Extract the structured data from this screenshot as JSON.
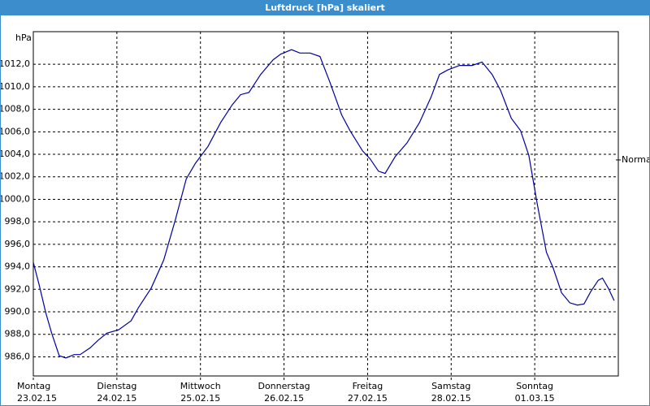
{
  "window": {
    "title": "Luftdruck [hPa] skaliert"
  },
  "chart_data": {
    "type": "line",
    "y_label": "hPa",
    "x": [
      0,
      0.07,
      0.15,
      0.22,
      0.31,
      0.39,
      0.49,
      0.56,
      0.68,
      0.78,
      0.88,
      1.02,
      1.17,
      1.26,
      1.41,
      1.56,
      1.7,
      1.83,
      1.94,
      2.09,
      2.24,
      2.38,
      2.48,
      2.58,
      2.72,
      2.87,
      2.96,
      3.09,
      3.19,
      3.31,
      3.43,
      3.55,
      3.69,
      3.79,
      3.94,
      4.03,
      4.13,
      4.21,
      4.33,
      4.47,
      4.62,
      4.76,
      4.86,
      4.96,
      5.1,
      5.25,
      5.37,
      5.49,
      5.59,
      5.72,
      5.83,
      5.93,
      6.03,
      6.14,
      6.22,
      6.32,
      6.42,
      6.51,
      6.59,
      6.67,
      6.76,
      6.81,
      6.88,
      6.95
    ],
    "series": [
      {
        "color": "#0000a0",
        "values": [
          994.4,
          992.4,
          989.9,
          988.1,
          986.1,
          985.9,
          986.2,
          986.2,
          986.8,
          987.5,
          988.1,
          988.4,
          989.2,
          990.4,
          992.1,
          994.6,
          998.2,
          1001.8,
          1003.2,
          1004.7,
          1006.8,
          1008.4,
          1009.3,
          1009.5,
          1011.1,
          1012.4,
          1012.9,
          1013.3,
          1013.0,
          1013.0,
          1012.7,
          1010.4,
          1007.5,
          1006.1,
          1004.3,
          1003.6,
          1002.5,
          1002.3,
          1003.8,
          1005.0,
          1006.8,
          1009.1,
          1011.1,
          1011.5,
          1011.9,
          1011.9,
          1012.2,
          1011.1,
          1009.7,
          1007.2,
          1006.1,
          1003.9,
          999.6,
          995.3,
          993.9,
          991.7,
          990.8,
          990.6,
          990.7,
          991.8,
          992.8,
          993.0,
          992.1,
          991.0
        ]
      }
    ],
    "xlim": [
      0,
      7
    ],
    "xticks": [
      {
        "value": 0,
        "label": "Montag",
        "date": "23.02.15"
      },
      {
        "value": 1,
        "label": "Dienstag",
        "date": "24.02.15"
      },
      {
        "value": 2,
        "label": "Mittwoch",
        "date": "25.02.15"
      },
      {
        "value": 3,
        "label": "Donnerstag",
        "date": "26.02.15"
      },
      {
        "value": 4,
        "label": "Freitag",
        "date": "27.02.15"
      },
      {
        "value": 5,
        "label": "Samstag",
        "date": "28.02.15"
      },
      {
        "value": 6,
        "label": "Sonntag",
        "date": "01.03.15"
      }
    ],
    "ylim": [
      984.3,
      1014.9
    ],
    "yticks": [
      {
        "value": 986,
        "label": "986,0"
      },
      {
        "value": 988,
        "label": "988,0"
      },
      {
        "value": 990,
        "label": "990,0"
      },
      {
        "value": 992,
        "label": "992,0"
      },
      {
        "value": 994,
        "label": "994,0"
      },
      {
        "value": 996,
        "label": "996,0"
      },
      {
        "value": 998,
        "label": "998,0"
      },
      {
        "value": 1000,
        "label": "1000,0"
      },
      {
        "value": 1002,
        "label": "1002,0"
      },
      {
        "value": 1004,
        "label": "1004,0"
      },
      {
        "value": 1006,
        "label": "1006,0"
      },
      {
        "value": 1008,
        "label": "1008,0"
      },
      {
        "value": 1010,
        "label": "1010,0"
      },
      {
        "value": 1012,
        "label": "1012,0"
      }
    ],
    "grid": true,
    "reference": {
      "label": "Normal",
      "value": 1003.5
    }
  }
}
